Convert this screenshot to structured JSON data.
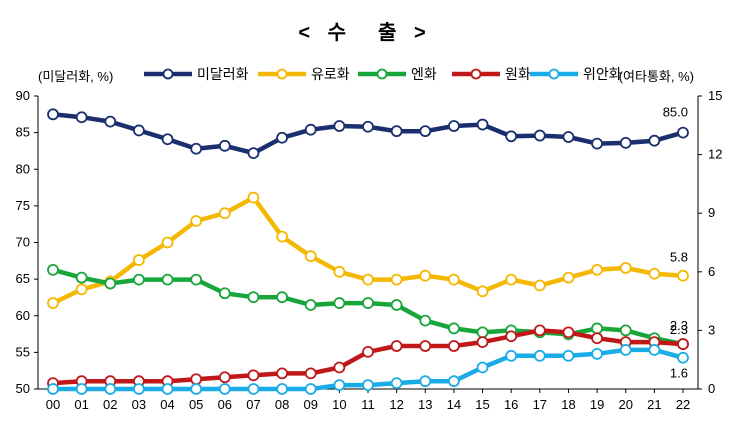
{
  "chart_data": {
    "type": "line",
    "title": "< 수　출 >",
    "y_left_label": "(미달러화, %)",
    "y_right_label": "(여타통화, %)",
    "ylim_left": [
      50,
      90
    ],
    "ylim_right": [
      0,
      15
    ],
    "y_left_ticks": [
      "90",
      "85",
      "80",
      "75",
      "70",
      "65",
      "60",
      "55",
      "50"
    ],
    "y_right_ticks": [
      "15",
      "12",
      "9",
      "6",
      "3",
      "0"
    ],
    "categories": [
      "00",
      "01",
      "02",
      "03",
      "04",
      "05",
      "06",
      "07",
      "08",
      "09",
      "10",
      "11",
      "12",
      "13",
      "14",
      "15",
      "16",
      "17",
      "18",
      "19",
      "20",
      "21",
      "22"
    ],
    "grid": false,
    "legend_position": "top",
    "series": [
      {
        "name": "미달러화",
        "axis": "left",
        "color": "#1b2f6e",
        "values": [
          87.5,
          87.1,
          86.5,
          85.3,
          84.1,
          82.8,
          83.2,
          82.2,
          84.3,
          85.4,
          85.9,
          85.8,
          85.2,
          85.2,
          85.9,
          86.1,
          84.5,
          84.6,
          84.4,
          83.5,
          83.6,
          83.9,
          85.0
        ],
        "end_label": "85.0"
      },
      {
        "name": "유로화",
        "axis": "right",
        "color": "#f5b800",
        "values": [
          4.4,
          5.1,
          5.5,
          6.6,
          7.5,
          8.6,
          9.0,
          9.8,
          7.8,
          6.8,
          6.0,
          5.6,
          5.6,
          5.8,
          5.6,
          5.0,
          5.6,
          5.3,
          5.7,
          6.1,
          6.2,
          5.9,
          5.8
        ],
        "end_label": "5.8"
      },
      {
        "name": "엔화",
        "axis": "right",
        "color": "#18a63a",
        "values": [
          6.1,
          5.7,
          5.4,
          5.6,
          5.6,
          5.6,
          4.9,
          4.7,
          4.7,
          4.3,
          4.4,
          4.4,
          4.3,
          3.5,
          3.1,
          2.9,
          3.0,
          2.9,
          2.8,
          3.1,
          3.0,
          2.6,
          2.3
        ],
        "end_label": "2.3"
      },
      {
        "name": "원화",
        "axis": "right",
        "color": "#c01818",
        "values": [
          0.3,
          0.4,
          0.4,
          0.4,
          0.4,
          0.5,
          0.6,
          0.7,
          0.8,
          0.8,
          1.1,
          1.9,
          2.2,
          2.2,
          2.2,
          2.4,
          2.7,
          3.0,
          2.9,
          2.6,
          2.4,
          2.4,
          2.3
        ],
        "end_label": "2.3"
      },
      {
        "name": "위안화",
        "axis": "right",
        "color": "#1aace6",
        "values": [
          0.0,
          0.0,
          0.0,
          0.0,
          0.0,
          0.0,
          0.0,
          0.0,
          0.0,
          0.0,
          0.2,
          0.2,
          0.3,
          0.4,
          0.4,
          1.1,
          1.7,
          1.7,
          1.7,
          1.8,
          2.0,
          2.0,
          1.6
        ],
        "end_label": "1.6"
      }
    ]
  }
}
